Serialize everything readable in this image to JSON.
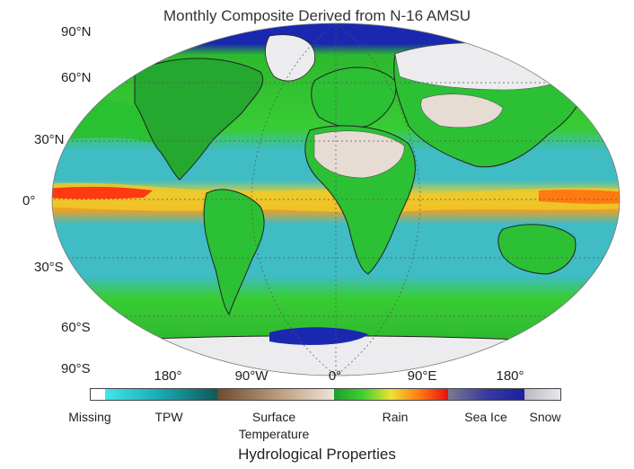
{
  "title": "Monthly Composite Derived from N-16 AMSU",
  "lat_labels": [
    "90°N",
    "60°N",
    "30°N",
    "0°",
    "30°S",
    "60°S",
    "90°S"
  ],
  "lon_labels": [
    "180°",
    "90°W",
    "0°",
    "90°E",
    "180°"
  ],
  "legend": {
    "title": "Hydrological Properties",
    "items": [
      {
        "label": "Missing",
        "color": "#ffffff"
      },
      {
        "label": "TPW",
        "gradient": [
          "#3fe6ec",
          "#1aa8b0",
          "#0d5a58"
        ]
      },
      {
        "label": "Surface Temperature",
        "line1": "Surface",
        "line2": "Temperature",
        "gradient": [
          "#6e4a30",
          "#b89878",
          "#efe4d8"
        ]
      },
      {
        "label": "Rain",
        "gradient": [
          "#1aa02a",
          "#3fd030",
          "#f0e030",
          "#ff7a10",
          "#e81010"
        ]
      },
      {
        "label": "Sea Ice",
        "gradient": [
          "#7a7a90",
          "#3a3aa0",
          "#1a20a0"
        ]
      },
      {
        "label": "Snow",
        "gradient": [
          "#b8b8c0",
          "#e8e8ec"
        ]
      }
    ]
  },
  "colors": {
    "ocean_tpw": "#3fbcc4",
    "ocean_rain": "#2ecc2e",
    "desert": "#e6dcd4",
    "sea_ice": "#1a28b0",
    "snow": "#ececee",
    "heavy_rain": "#ff2a10"
  }
}
